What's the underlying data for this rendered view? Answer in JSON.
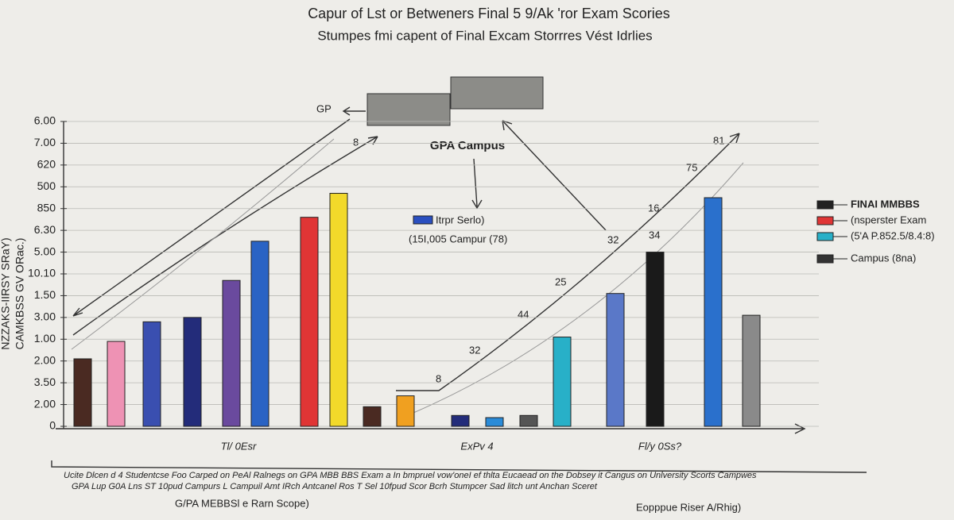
{
  "chart_data": {
    "type": "bar",
    "title": "Capur of Lst or Betweners Final 5 9/Ak 'ror Exam Scories",
    "subtitle": "Stumpes fmi capent of Final Excam Storrres Vést Idrlies",
    "y_label": [
      "NZZAKS-IIRSY SRaY)",
      "CAMKBSS GV ORac.)"
    ],
    "ylim": [
      0,
      14
    ],
    "yticks": [
      {
        "value": 0,
        "label": "0"
      },
      {
        "value": 1,
        "label": "2.00"
      },
      {
        "value": 2,
        "label": "3.50"
      },
      {
        "value": 3,
        "label": "2.00"
      },
      {
        "value": 4,
        "label": "1.00"
      },
      {
        "value": 5,
        "label": "3.00"
      },
      {
        "value": 6,
        "label": "1.50"
      },
      {
        "value": 7,
        "label": "10.10"
      },
      {
        "value": 8,
        "label": "5.00"
      },
      {
        "value": 9,
        "label": "6.30"
      },
      {
        "value": 10,
        "label": "850"
      },
      {
        "value": 11,
        "label": "500"
      },
      {
        "value": 12,
        "label": "620"
      },
      {
        "value": 13,
        "label": "7.00"
      },
      {
        "value": 14,
        "label": "6.00"
      }
    ],
    "grid": true,
    "values": [
      3.1,
      3.9,
      4.8,
      5.0,
      6.7,
      8.5,
      9.6,
      10.7,
      0.9,
      1.4,
      0.5,
      0.4,
      0.5,
      4.1,
      6.1,
      8.0,
      10.5,
      5.1
    ],
    "colors": [
      "#4a2a22",
      "#ee92b4",
      "#3a4fb0",
      "#232c7a",
      "#6a4a9e",
      "#2a63c4",
      "#e03535",
      "#f2d92a",
      "#4a2a22",
      "#f0a020",
      "#232c7a",
      "#2a8bd8",
      "#555555",
      "#28b0c8",
      "#5a78c8",
      "#1a1a1a",
      "#2a70cc",
      "#8a8a8a"
    ],
    "group_labels": [
      "Tl/ 0Esr",
      "ExPv 4",
      "Fl/y 0Ss?"
    ],
    "legend": [
      {
        "name": "FINAI MMBBS",
        "color": "#222222"
      },
      {
        "name": "(nsperster Exam",
        "color": "#e03535"
      },
      {
        "name": "(5'A P.852.5/8.4:8)",
        "color": "#28b0c8"
      },
      {
        "name": "Campus (8na)",
        "color": "#333333"
      }
    ],
    "inner_legend": {
      "name": "Itrpr Serlo)",
      "color": "#2a4fc0",
      "note": "(15I,005 Campur (78)"
    },
    "annotations": [
      "GP",
      "8",
      "GPA Campus",
      "81",
      "75",
      "16",
      "34",
      "32",
      "25",
      "44",
      "32",
      "8"
    ],
    "footnote": [
      "Ucite Dlcen d 4 Studentcse Foo Carped on PeAl Ralnegs on GPA MBB BBS Exam a In bmpruel vow'oneI ef thlta Eucaead on the Dobsey it Cangus on Unlversity Scorts Campwes",
      "GPA Lup G0A Lns ST 10pud Campurs L Campuil Amt IRch Antcanel Ros T Sel 10fpud Scor Bcrh Stumpcer Sad litch unt Anchan Sceret"
    ],
    "captions": [
      "G/PA MEBBSl e Rarn Scope)",
      "Eopppue Riser A/Rhig)"
    ]
  }
}
